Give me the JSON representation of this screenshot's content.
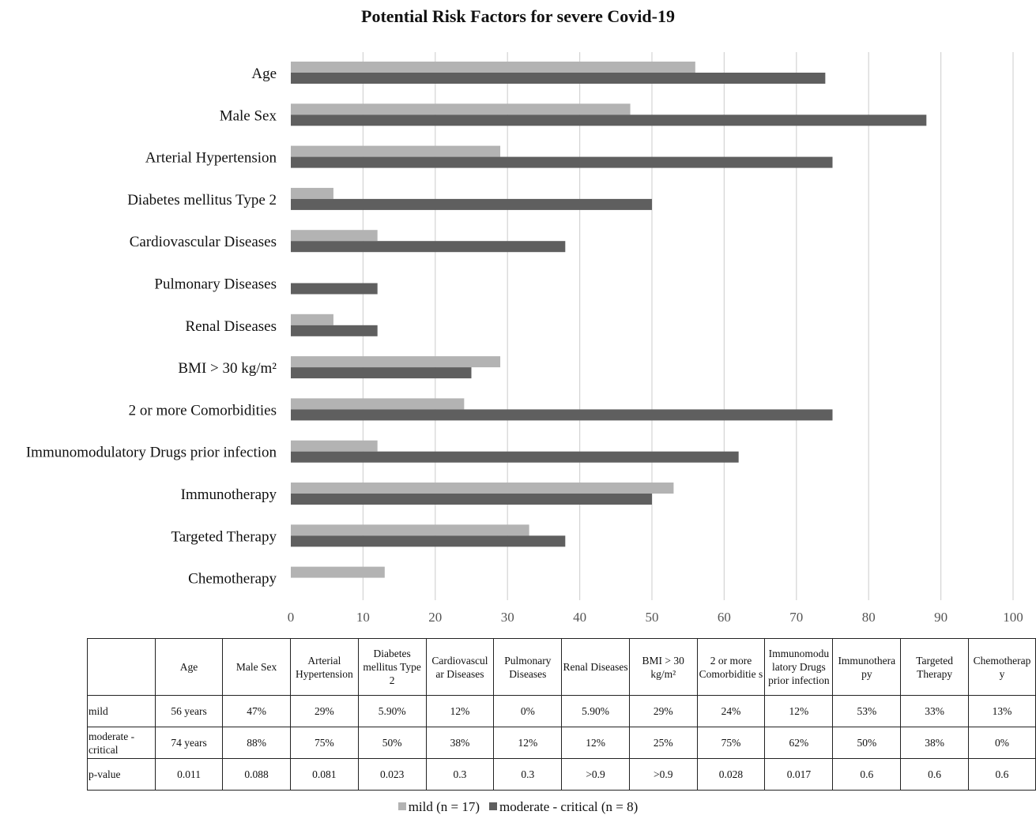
{
  "chart_data": {
    "type": "bar",
    "orientation": "horizontal",
    "title": "Potential Risk Factors for severe Covid-19",
    "categories": [
      "Age",
      "Male Sex",
      "Arterial Hypertension",
      "Diabetes mellitus Type 2",
      "Cardiovascular Diseases",
      "Pulmonary Diseases",
      "Renal Diseases",
      "BMI > 30 kg/m²",
      "2 or more Comorbidities",
      "Immunomodulatory Drugs prior infection",
      "Immunotherapy",
      "Targeted Therapy",
      "Chemotherapy"
    ],
    "series": [
      {
        "name": "mild (n = 17)",
        "color": "#b3b3b3",
        "values": [
          56,
          47,
          29,
          5.9,
          12,
          0,
          5.9,
          29,
          24,
          12,
          53,
          33,
          13
        ]
      },
      {
        "name": "moderate - critical (n = 8)",
        "color": "#5f5f5f",
        "values": [
          74,
          88,
          75,
          50,
          38,
          12,
          12,
          25,
          75,
          62,
          50,
          38,
          0
        ]
      }
    ],
    "xlim": [
      0,
      100
    ],
    "xticks": [
      "0",
      "10",
      "20",
      "30",
      "40",
      "50",
      "60",
      "70",
      "80",
      "90",
      "100"
    ],
    "grid": true,
    "legend_position": "bottom"
  },
  "table": {
    "headers": [
      "",
      "Age",
      "Male Sex",
      "Arterial Hypertension",
      "Diabetes mellitus Type 2",
      "Cardiovascul ar Diseases",
      "Pulmonary Diseases",
      "Renal Diseases",
      "BMI > 30 kg/m²",
      "2 or more Comorbiditie s",
      "Immunomodu latory Drugs prior infection",
      "Immunothera py",
      "Targeted Therapy",
      "Chemotherap y"
    ],
    "rows": [
      [
        "mild",
        "56 years",
        "47%",
        "29%",
        "5.90%",
        "12%",
        "0%",
        "5.90%",
        "29%",
        "24%",
        "12%",
        "53%",
        "33%",
        "13%"
      ],
      [
        "moderate - critical",
        "74 years",
        "88%",
        "75%",
        "50%",
        "38%",
        "12%",
        "12%",
        "25%",
        "75%",
        "62%",
        "50%",
        "38%",
        "0%"
      ],
      [
        "p-value",
        "0.011",
        "0.088",
        "0.081",
        "0.023",
        "0.3",
        "0.3",
        ">0.9",
        ">0.9",
        "0.028",
        "0.017",
        "0.6",
        "0.6",
        "0.6"
      ]
    ]
  },
  "legend": {
    "items": [
      {
        "label": "mild (n = 17)",
        "color": "#b3b3b3"
      },
      {
        "label": "moderate - critical (n = 8)",
        "color": "#5f5f5f"
      }
    ]
  }
}
